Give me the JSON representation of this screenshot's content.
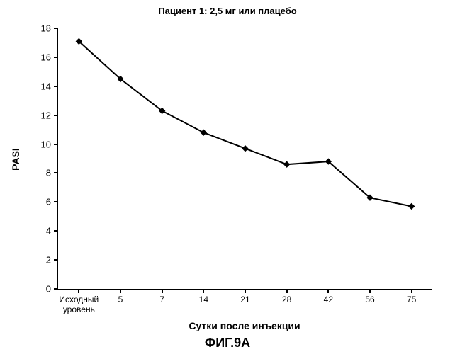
{
  "chart": {
    "type": "line",
    "title": "Пациент 1: 2,5 мг или плацебо",
    "ylabel": "PASI",
    "xlabel": "Сутки после инъекции",
    "figure_label": "ФИГ.9A",
    "x_categories": [
      "Исходный\nуровень",
      "5",
      "7",
      "14",
      "21",
      "28",
      "42",
      "56",
      "75"
    ],
    "y_values": [
      17.1,
      14.5,
      12.3,
      10.8,
      9.7,
      8.6,
      8.8,
      6.3,
      5.7
    ],
    "ylim": [
      0,
      18
    ],
    "ytick_step": 2,
    "line_color": "#000000",
    "marker_color": "#000000",
    "marker_type": "diamond",
    "marker_size": 8,
    "line_width": 2,
    "background_color": "#ffffff",
    "axis_color": "#000000",
    "title_fontsize": 13,
    "label_fontsize": 14,
    "tick_fontsize": 13
  }
}
